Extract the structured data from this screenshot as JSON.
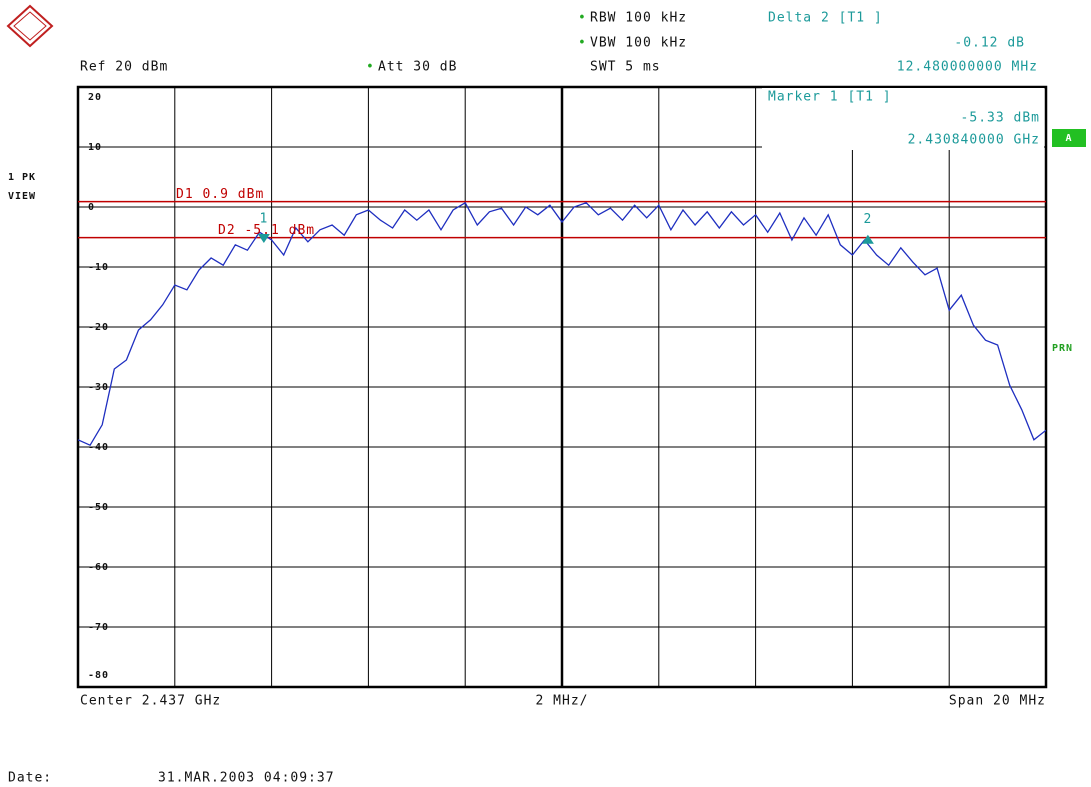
{
  "header": {
    "rbw": "RBW 100 kHz",
    "vbw": "VBW 100 kHz",
    "swt": "SWT 5 ms",
    "ref": "Ref 20 dBm",
    "att": "Att 30 dB",
    "delta_title": "Delta 2 [T1 ]",
    "delta_level": "-0.12 dB",
    "delta_freq": "12.480000000 MHz",
    "marker_title": "Marker 1 [T1 ]",
    "marker_level": "-5.33 dBm",
    "marker_freq": "2.430840000 GHz"
  },
  "side": {
    "trace_mode": "1 PK",
    "view": "VIEW",
    "a": "A",
    "prn": "PRN"
  },
  "footer": {
    "center": "Center 2.437 GHz",
    "div": "2 MHz/",
    "span": "Span 20 MHz",
    "date_label": "Date:",
    "date": "31.MAR.2003  04:09:37"
  },
  "chart_data": {
    "type": "line",
    "color": "#1f2fc0",
    "x": [
      2.427,
      2.42725,
      2.4275,
      2.42775,
      2.428,
      2.42825,
      2.4285,
      2.42875,
      2.429,
      2.42925,
      2.4295,
      2.42975,
      2.43,
      2.43025,
      2.4305,
      2.43075,
      2.431,
      2.43125,
      2.4315,
      2.43175,
      2.432,
      2.43225,
      2.4325,
      2.43275,
      2.433,
      2.43325,
      2.4335,
      2.43375,
      2.434,
      2.43425,
      2.4345,
      2.43475,
      2.435,
      2.43525,
      2.4355,
      2.43575,
      2.436,
      2.43625,
      2.4365,
      2.43675,
      2.437,
      2.43725,
      2.4375,
      2.43775,
      2.438,
      2.43825,
      2.4385,
      2.43875,
      2.439,
      2.43925,
      2.4395,
      2.43975,
      2.44,
      2.44025,
      2.4405,
      2.44075,
      2.441,
      2.44125,
      2.4415,
      2.44175,
      2.442,
      2.44225,
      2.4425,
      2.44275,
      2.443,
      2.44325,
      2.4435,
      2.44375,
      2.444,
      2.44425,
      2.4445,
      2.44475,
      2.445,
      2.44525,
      2.4455,
      2.44575,
      2.446,
      2.44625,
      2.4465,
      2.44675,
      2.447
    ],
    "values": [
      -38.8,
      -39.7,
      -36.3,
      -27,
      -25.5,
      -20.5,
      -18.8,
      -16.3,
      -13,
      -13.8,
      -10.5,
      -8.5,
      -9.7,
      -6.3,
      -7.2,
      -4.2,
      -5.5,
      -8,
      -3.5,
      -5.8,
      -3.8,
      -3,
      -4.7,
      -1.3,
      -0.5,
      -2.2,
      -3.5,
      -0.5,
      -2.2,
      -0.5,
      -3.8,
      -0.5,
      0.7,
      -3,
      -0.8,
      -0.2,
      -3,
      0,
      -1.3,
      0.3,
      -2.5,
      0,
      0.7,
      -1.3,
      -0.2,
      -2.2,
      0.3,
      -1.8,
      0.3,
      -3.8,
      -0.5,
      -3,
      -0.8,
      -3.5,
      -0.8,
      -3,
      -1.3,
      -4.2,
      -1,
      -5.5,
      -1.8,
      -4.7,
      -1.3,
      -6.3,
      -8,
      -5.5,
      -8,
      -9.7,
      -6.8,
      -9.2,
      -11.3,
      -10.2,
      -17.2,
      -14.7,
      -19.7,
      -22.2,
      -23,
      -29.7,
      -33.8,
      -38.8,
      -37.2
    ],
    "xlim": [
      2.427,
      2.447
    ],
    "xticks": [
      2.427,
      2.429,
      2.431,
      2.433,
      2.435,
      2.437,
      2.439,
      2.441,
      2.443,
      2.445,
      2.447
    ],
    "ylim": [
      -80,
      20
    ],
    "yticks": [
      20,
      10,
      0,
      -10,
      -20,
      -30,
      -40,
      -50,
      -60,
      -70,
      -80
    ],
    "grid": true,
    "display_lines": [
      {
        "label": "D1 0.9 dBm",
        "value": 0.9,
        "color": "#c00000"
      },
      {
        "label": "D2 -5.1 dBm",
        "value": -5.1,
        "color": "#c00000"
      }
    ],
    "markers": [
      {
        "label": "1",
        "x": 2.43084,
        "y": -5.33
      },
      {
        "label": "2",
        "x": 2.44332,
        "y": -5.45
      }
    ]
  }
}
